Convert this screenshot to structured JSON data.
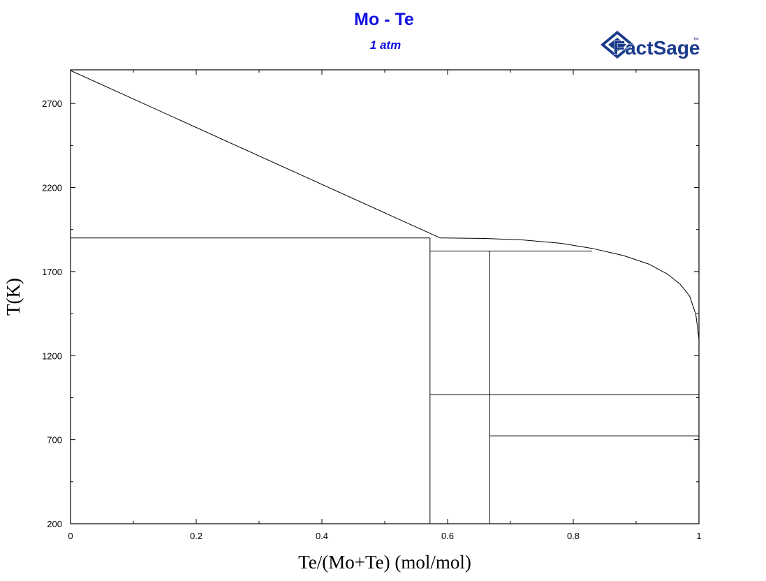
{
  "chart_data": {
    "type": "line",
    "title": "Mo - Te",
    "subtitle": "1 atm",
    "logo_text": "FactSage",
    "logo_mark": "™",
    "xlabel": "Te/(Mo+Te) (mol/mol)",
    "ylabel": "T(K)",
    "xlim": [
      0,
      1
    ],
    "ylim": [
      200,
      2900
    ],
    "x_ticks": [
      0,
      0.2,
      0.4,
      0.6,
      0.8,
      1
    ],
    "x_tick_labels": [
      "0",
      "0.2",
      "0.4",
      "0.6",
      "0.8",
      "1"
    ],
    "y_ticks": [
      200,
      700,
      1200,
      1700,
      2200,
      2700
    ],
    "y_tick_labels": [
      "200",
      "700",
      "1200",
      "1700",
      "2200",
      "2700"
    ],
    "grid": false,
    "colors": {
      "title": "#1010e0",
      "line": "#000000",
      "logo": "#1a3a8a"
    },
    "series": [
      {
        "points": [
          [
            0,
            2896
          ],
          [
            0.588,
            1900
          ]
        ]
      },
      {
        "points": [
          [
            0.588,
            1900
          ],
          [
            0.66,
            1897
          ],
          [
            0.72,
            1888
          ],
          [
            0.78,
            1868
          ],
          [
            0.83,
            1838
          ],
          [
            0.88,
            1795
          ],
          [
            0.92,
            1745
          ],
          [
            0.95,
            1685
          ],
          [
            0.97,
            1625
          ],
          [
            0.985,
            1555
          ],
          [
            0.995,
            1445
          ],
          [
            1.0,
            1300
          ]
        ]
      },
      {
        "points": [
          [
            0,
            1900
          ],
          [
            0.572,
            1900
          ]
        ]
      },
      {
        "points": [
          [
            0.572,
            1822
          ],
          [
            0.83,
            1822
          ]
        ]
      },
      {
        "points": [
          [
            0.572,
            200
          ],
          [
            0.572,
            1900
          ]
        ]
      },
      {
        "points": [
          [
            0.667,
            200
          ],
          [
            0.667,
            1822
          ]
        ]
      },
      {
        "points": [
          [
            0.572,
            968
          ],
          [
            1,
            968
          ]
        ]
      },
      {
        "points": [
          [
            0.667,
            723
          ],
          [
            1,
            723
          ]
        ]
      }
    ]
  }
}
